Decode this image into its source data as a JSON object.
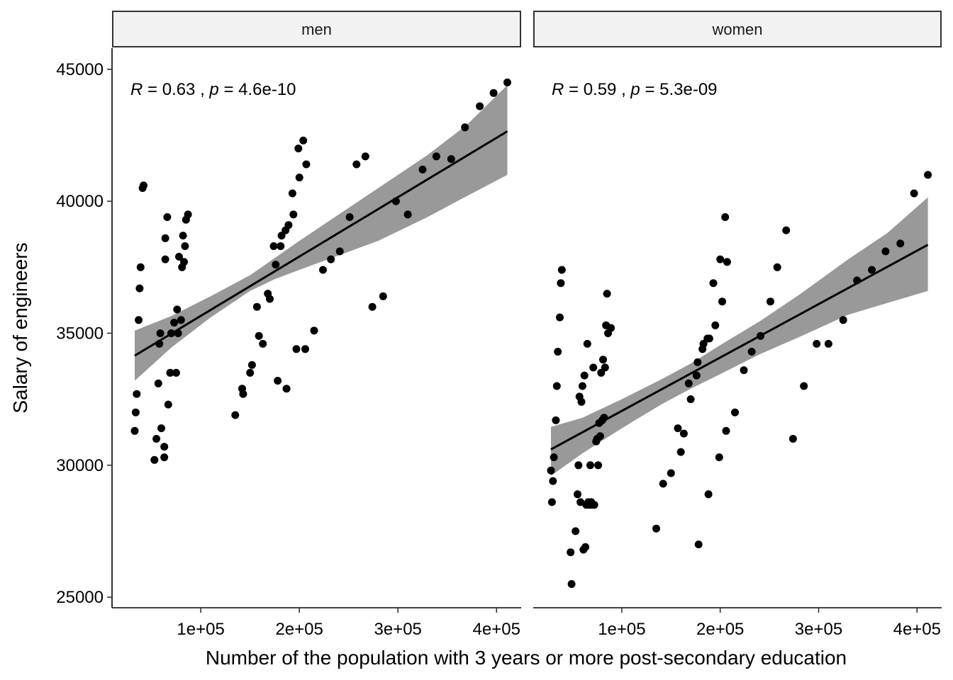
{
  "chart_data": {
    "type": "scatter",
    "xlabel": "Number of the population with 3 years or more post-secondary education",
    "ylabel": "Salary of engineers",
    "xlim": [
      10000,
      425000
    ],
    "ylim": [
      24600,
      45800
    ],
    "x_ticks": [
      100000,
      200000,
      300000,
      400000
    ],
    "x_tick_labels": [
      "1e+05",
      "2e+05",
      "3e+05",
      "4e+05"
    ],
    "y_ticks": [
      25000,
      30000,
      35000,
      40000,
      45000
    ],
    "y_tick_labels": [
      "25000",
      "30000",
      "35000",
      "40000",
      "45000"
    ],
    "grid": false,
    "panels": [
      {
        "name": "men",
        "stat": {
          "r_label": "R",
          "r_text": " = 0.63 , ",
          "p_label": "p",
          "p_text": " = 4.6e-10"
        },
        "fit": {
          "x": [
            33000,
            411000
          ],
          "y": [
            34150,
            42650
          ]
        },
        "ci": {
          "x": [
            33000,
            70000,
            110000,
            150000,
            175000,
            200000,
            240000,
            280000,
            330000,
            370000,
            411000
          ],
          "lower": [
            33200,
            34450,
            35600,
            36600,
            37050,
            37400,
            37950,
            38500,
            39400,
            40200,
            41000
          ],
          "upper": [
            35100,
            35650,
            36400,
            37200,
            37850,
            38500,
            39500,
            40500,
            41750,
            42900,
            44400
          ]
        },
        "points": [
          [
            33000,
            31300
          ],
          [
            34000,
            32000
          ],
          [
            35000,
            32700
          ],
          [
            37000,
            35500
          ],
          [
            38000,
            36700
          ],
          [
            39000,
            37500
          ],
          [
            41000,
            40500
          ],
          [
            42000,
            40600
          ],
          [
            53000,
            30200
          ],
          [
            55000,
            31000
          ],
          [
            57000,
            33100
          ],
          [
            58000,
            34600
          ],
          [
            59000,
            35000
          ],
          [
            60000,
            31400
          ],
          [
            63000,
            30700
          ],
          [
            63000,
            30300
          ],
          [
            64000,
            38600
          ],
          [
            64000,
            37800
          ],
          [
            66000,
            39400
          ],
          [
            67000,
            32300
          ],
          [
            69000,
            33500
          ],
          [
            70000,
            35000
          ],
          [
            73000,
            35400
          ],
          [
            75000,
            33500
          ],
          [
            76000,
            35900
          ],
          [
            77000,
            35000
          ],
          [
            78000,
            37900
          ],
          [
            80000,
            35500
          ],
          [
            81000,
            37500
          ],
          [
            82000,
            38700
          ],
          [
            83000,
            37700
          ],
          [
            84000,
            38300
          ],
          [
            85000,
            39300
          ],
          [
            87000,
            39500
          ],
          [
            135000,
            31900
          ],
          [
            142000,
            32900
          ],
          [
            143000,
            32700
          ],
          [
            150000,
            33500
          ],
          [
            152000,
            33800
          ],
          [
            157000,
            36000
          ],
          [
            159000,
            34900
          ],
          [
            163000,
            34600
          ],
          [
            168000,
            36500
          ],
          [
            170000,
            36300
          ],
          [
            174000,
            38300
          ],
          [
            176000,
            37600
          ],
          [
            178000,
            33200
          ],
          [
            181000,
            38300
          ],
          [
            182000,
            38700
          ],
          [
            186000,
            38900
          ],
          [
            187000,
            32900
          ],
          [
            189000,
            39100
          ],
          [
            193000,
            40300
          ],
          [
            194000,
            39500
          ],
          [
            197000,
            34400
          ],
          [
            199000,
            42000
          ],
          [
            200000,
            40900
          ],
          [
            204000,
            42300
          ],
          [
            206000,
            34400
          ],
          [
            207000,
            41400
          ],
          [
            215000,
            35100
          ],
          [
            224000,
            37400
          ],
          [
            232000,
            37800
          ],
          [
            241000,
            38100
          ],
          [
            251000,
            39400
          ],
          [
            258000,
            41400
          ],
          [
            267000,
            41700
          ],
          [
            274000,
            36000
          ],
          [
            285000,
            36400
          ],
          [
            298000,
            40000
          ],
          [
            310000,
            39500
          ],
          [
            325000,
            41200
          ],
          [
            339000,
            41700
          ],
          [
            354000,
            41600
          ],
          [
            368000,
            42800
          ],
          [
            383000,
            43600
          ],
          [
            397000,
            44100
          ],
          [
            411000,
            44500
          ]
        ]
      },
      {
        "name": "women",
        "stat": {
          "r_label": "R",
          "r_text": " = 0.59 , ",
          "p_label": "p",
          "p_text": " = 5.3e-09"
        },
        "fit": {
          "x": [
            28000,
            411000
          ],
          "y": [
            30600,
            38350
          ]
        },
        "ci": {
          "x": [
            28000,
            60000,
            100000,
            140000,
            170000,
            200000,
            240000,
            280000,
            330000,
            370000,
            411000
          ],
          "lower": [
            29600,
            30450,
            31400,
            32300,
            32900,
            33450,
            34200,
            34850,
            35700,
            36150,
            36600
          ],
          "upper": [
            31450,
            31800,
            32500,
            33250,
            33850,
            34550,
            35450,
            36450,
            37800,
            38800,
            40150
          ]
        },
        "points": [
          [
            28000,
            29800
          ],
          [
            29000,
            28600
          ],
          [
            30000,
            29400
          ],
          [
            31000,
            30300
          ],
          [
            33000,
            31700
          ],
          [
            34000,
            33000
          ],
          [
            35000,
            34300
          ],
          [
            37000,
            35600
          ],
          [
            38000,
            36900
          ],
          [
            39000,
            37400
          ],
          [
            48000,
            26700
          ],
          [
            49000,
            25500
          ],
          [
            53000,
            27500
          ],
          [
            55000,
            28900
          ],
          [
            56000,
            30000
          ],
          [
            57000,
            32600
          ],
          [
            58000,
            28600
          ],
          [
            59000,
            32400
          ],
          [
            60000,
            33000
          ],
          [
            61000,
            26800
          ],
          [
            62000,
            33400
          ],
          [
            63000,
            26900
          ],
          [
            64000,
            28500
          ],
          [
            65000,
            34600
          ],
          [
            66000,
            28600
          ],
          [
            67000,
            28500
          ],
          [
            68000,
            30000
          ],
          [
            69000,
            28600
          ],
          [
            70000,
            28500
          ],
          [
            71000,
            33700
          ],
          [
            72000,
            28500
          ],
          [
            74000,
            30900
          ],
          [
            75000,
            31000
          ],
          [
            76000,
            30000
          ],
          [
            77000,
            31600
          ],
          [
            78000,
            31100
          ],
          [
            79000,
            33500
          ],
          [
            80000,
            31700
          ],
          [
            81000,
            34000
          ],
          [
            82000,
            31800
          ],
          [
            83000,
            33700
          ],
          [
            84000,
            35300
          ],
          [
            85000,
            36500
          ],
          [
            86000,
            35000
          ],
          [
            89000,
            35200
          ],
          [
            135000,
            27600
          ],
          [
            142000,
            29300
          ],
          [
            150000,
            29700
          ],
          [
            157000,
            31400
          ],
          [
            160000,
            30500
          ],
          [
            163000,
            31200
          ],
          [
            168000,
            33100
          ],
          [
            170000,
            32500
          ],
          [
            176000,
            33400
          ],
          [
            177000,
            33900
          ],
          [
            178000,
            27000
          ],
          [
            182000,
            34400
          ],
          [
            183000,
            34600
          ],
          [
            187000,
            34800
          ],
          [
            188000,
            28900
          ],
          [
            189000,
            34800
          ],
          [
            193000,
            36900
          ],
          [
            195000,
            35300
          ],
          [
            199000,
            30300
          ],
          [
            200000,
            37800
          ],
          [
            202000,
            36200
          ],
          [
            205000,
            39400
          ],
          [
            206000,
            31300
          ],
          [
            207000,
            37700
          ],
          [
            215000,
            32000
          ],
          [
            224000,
            33600
          ],
          [
            232000,
            34300
          ],
          [
            241000,
            34900
          ],
          [
            251000,
            36200
          ],
          [
            258000,
            37500
          ],
          [
            267000,
            38900
          ],
          [
            274000,
            31000
          ],
          [
            285000,
            33000
          ],
          [
            298000,
            34600
          ],
          [
            310000,
            34600
          ],
          [
            325000,
            35500
          ],
          [
            339000,
            37000
          ],
          [
            354000,
            37400
          ],
          [
            368000,
            38100
          ],
          [
            383000,
            38400
          ],
          [
            397000,
            40300
          ],
          [
            411000,
            41000
          ]
        ]
      }
    ]
  }
}
